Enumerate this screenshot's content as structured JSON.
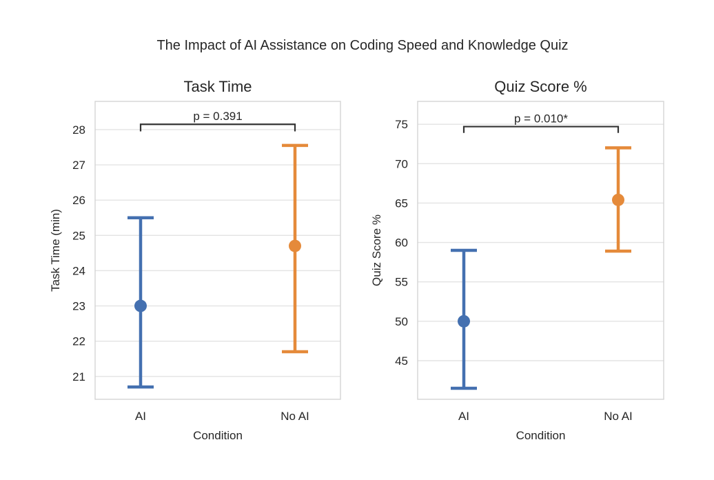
{
  "figure": {
    "suptitle": "The Impact of AI Assistance on Coding Speed and Knowledge Quiz"
  },
  "chart_data": [
    {
      "type": "scatter",
      "subtype": "point-with-error-bars",
      "title": "Task Time",
      "xlabel": "Condition",
      "ylabel": "Task Time (min)",
      "categories": [
        "AI",
        "No AI"
      ],
      "ylim": [
        20.35,
        28.8
      ],
      "yticks": [
        21,
        22,
        23,
        24,
        25,
        26,
        27,
        28
      ],
      "grid": true,
      "points": [
        {
          "category": "AI",
          "mean": 23.0,
          "lower": 20.7,
          "upper": 25.5,
          "color": "#4470b0"
        },
        {
          "category": "No AI",
          "mean": 24.7,
          "lower": 21.7,
          "upper": 27.55,
          "color": "#e58a3a"
        }
      ],
      "annotation": {
        "text": "p = 0.391",
        "between": [
          "AI",
          "No AI"
        ],
        "y": 28.15,
        "drop": 0.2
      }
    },
    {
      "type": "scatter",
      "subtype": "point-with-error-bars",
      "title": "Quiz Score %",
      "xlabel": "Condition",
      "ylabel": "Quiz Score %",
      "categories": [
        "AI",
        "No AI"
      ],
      "ylim": [
        40.1,
        77.9
      ],
      "yticks": [
        45,
        50,
        55,
        60,
        65,
        70,
        75
      ],
      "grid": true,
      "points": [
        {
          "category": "AI",
          "mean": 50.0,
          "lower": 41.5,
          "upper": 59.0,
          "color": "#4470b0"
        },
        {
          "category": "No AI",
          "mean": 65.4,
          "lower": 58.9,
          "upper": 72.0,
          "color": "#e58a3a"
        }
      ],
      "annotation": {
        "text": "p = 0.010*",
        "between": [
          "AI",
          "No AI"
        ],
        "y": 74.7,
        "drop": 0.8
      }
    }
  ]
}
